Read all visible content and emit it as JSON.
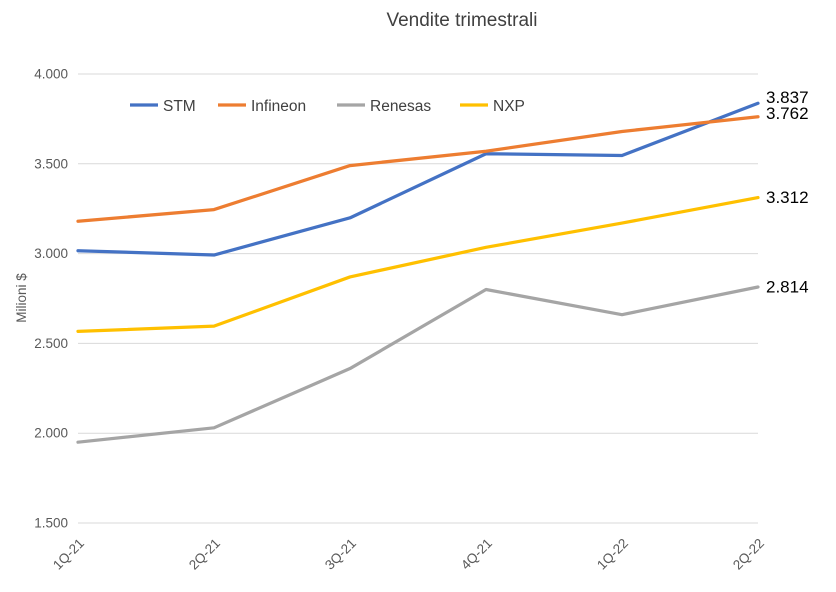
{
  "title": "Vendite trimestrali",
  "y_axis_title": "Milioni $",
  "colors": {
    "stm": "#4472C4",
    "infineon": "#ED7D31",
    "renesas": "#A5A5A5",
    "nxp": "#FFC000",
    "gridline": "#D9D9D9",
    "tick_text": "#595959",
    "title_text": "#404040",
    "end_label_text": "#000000"
  },
  "chart_data": {
    "type": "line",
    "title": "Vendite trimestrali",
    "xlabel": "",
    "ylabel": "Milioni $",
    "categories": [
      "1Q-21",
      "2Q-21",
      "3Q-21",
      "4Q-21",
      "1Q-22",
      "2Q-22"
    ],
    "y_ticks": [
      "4.000",
      "3.500",
      "3.000",
      "2.500",
      "2.000",
      "1.500"
    ],
    "ylim": [
      1500,
      4000
    ],
    "grid": true,
    "legend_position": "top",
    "series": [
      {
        "name": "STM",
        "color": "#4472C4",
        "values": [
          3016,
          2992,
          3199,
          3556,
          3546,
          3837
        ],
        "end_label": "3.837"
      },
      {
        "name": "Infineon",
        "color": "#ED7D31",
        "values": [
          3180,
          3245,
          3490,
          3570,
          3680,
          3762
        ],
        "end_label": "3.762"
      },
      {
        "name": "Renesas",
        "color": "#A5A5A5",
        "values": [
          1950,
          2030,
          2360,
          2800,
          2660,
          2814
        ],
        "end_label": "2.814"
      },
      {
        "name": "NXP",
        "color": "#FFC000",
        "values": [
          2567,
          2596,
          2870,
          3035,
          3170,
          3312
        ],
        "end_label": "3.312"
      }
    ]
  }
}
